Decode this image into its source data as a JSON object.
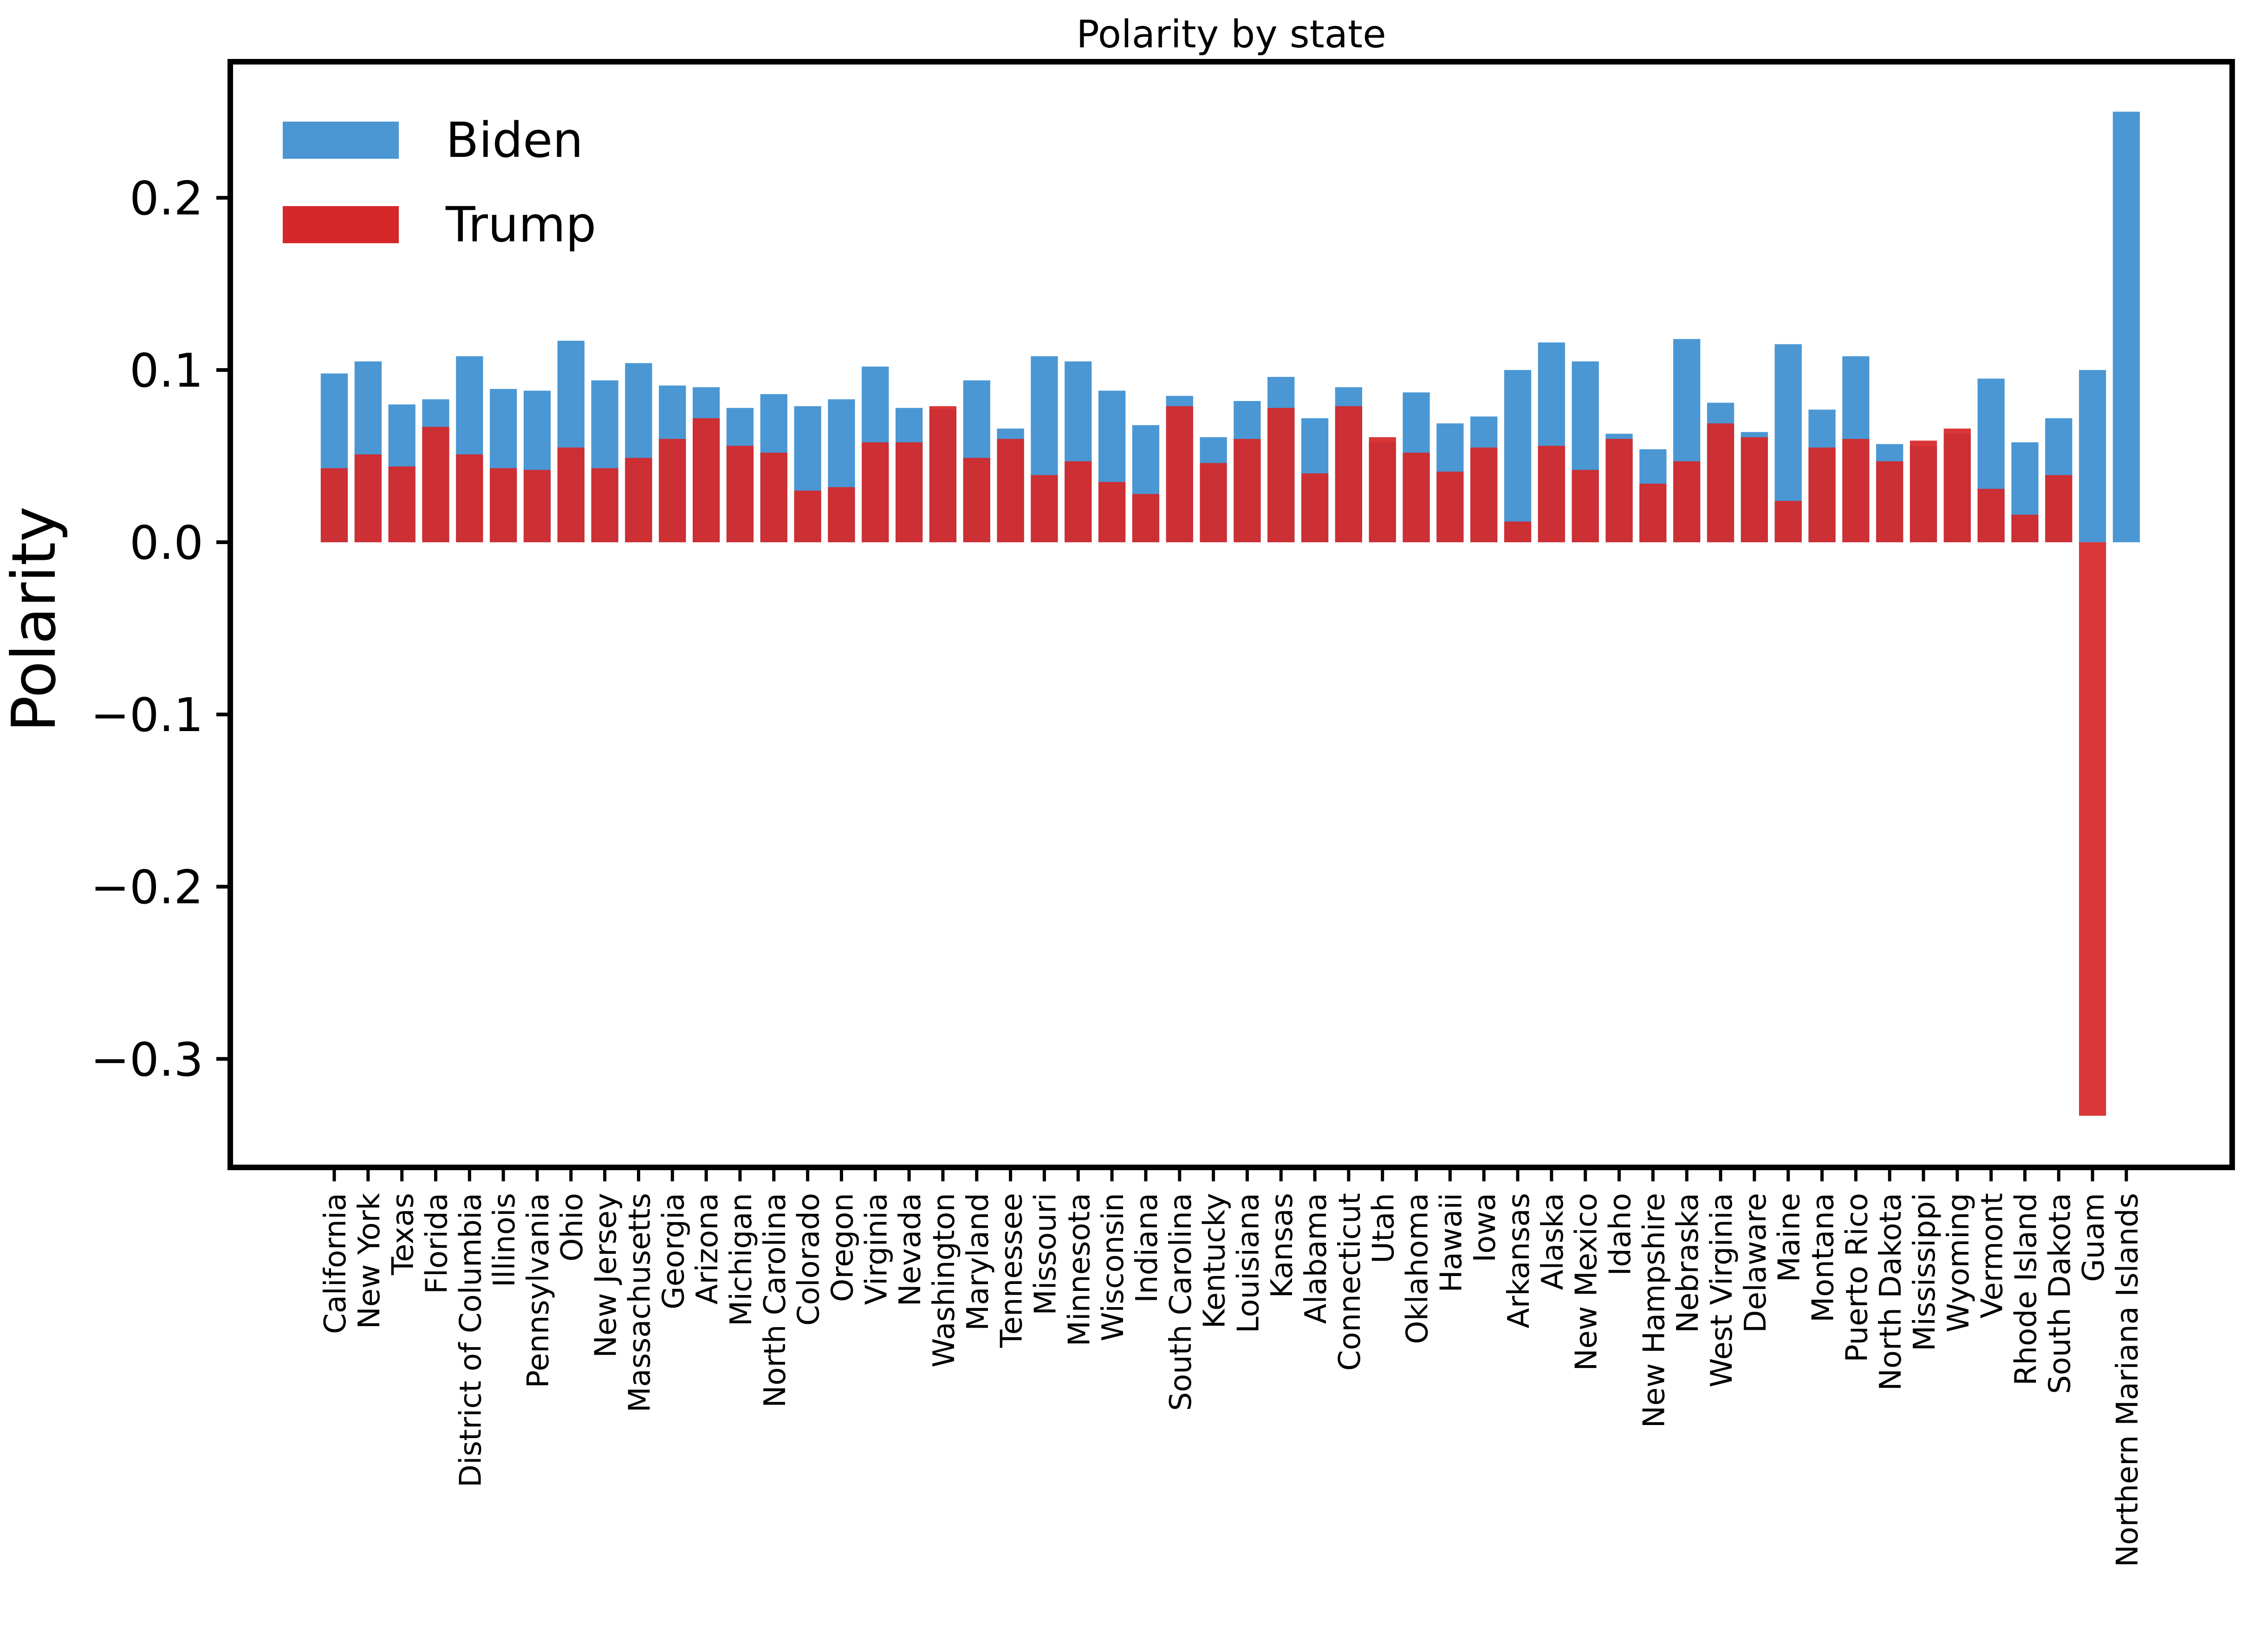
{
  "chart_data": {
    "type": "bar",
    "title": "Polarity by state",
    "xlabel": "",
    "ylabel": "Polarity",
    "ylim": [
      -0.363,
      0.279
    ],
    "yticks": [
      {
        "value": 0.2,
        "label": "0.2"
      },
      {
        "value": 0.1,
        "label": "0.1"
      },
      {
        "value": 0.0,
        "label": "0.0"
      },
      {
        "value": -0.1,
        "label": "−0.1"
      },
      {
        "value": -0.2,
        "label": "−0.2"
      },
      {
        "value": -0.3,
        "label": "−0.3"
      }
    ],
    "grid": false,
    "legend_position": "top-left",
    "categories": [
      "California",
      "New York",
      "Texas",
      "Florida",
      "District of Columbia",
      "Illinois",
      "Pennsylvania",
      "Ohio",
      "New Jersey",
      "Massachusetts",
      "Georgia",
      "Arizona",
      "Michigan",
      "North Carolina",
      "Colorado",
      "Oregon",
      "Virginia",
      "Nevada",
      "Washington",
      "Maryland",
      "Tennessee",
      "Missouri",
      "Minnesota",
      "Wisconsin",
      "Indiana",
      "South Carolina",
      "Kentucky",
      "Louisiana",
      "Kansas",
      "Alabama",
      "Connecticut",
      "Utah",
      "Oklahoma",
      "Hawaii",
      "Iowa",
      "Arkansas",
      "Alaska",
      "New Mexico",
      "Idaho",
      "New Hampshire",
      "Nebraska",
      "West Virginia",
      "Delaware",
      "Maine",
      "Montana",
      "Puerto Rico",
      "North Dakota",
      "Mississippi",
      "Wyoming",
      "Vermont",
      "Rhode Island",
      "South Dakota",
      "Guam",
      "Northern Mariana Islands"
    ],
    "series": [
      {
        "name": "Biden",
        "color": "#4a97d4",
        "values": [
          0.098,
          0.105,
          0.08,
          0.083,
          0.108,
          0.089,
          0.088,
          0.117,
          0.094,
          0.104,
          0.091,
          0.09,
          0.078,
          0.086,
          0.079,
          0.083,
          0.102,
          0.078,
          0.077,
          0.094,
          0.066,
          0.108,
          0.105,
          0.088,
          0.068,
          0.085,
          0.061,
          0.082,
          0.096,
          0.072,
          0.09,
          0.058,
          0.087,
          0.069,
          0.073,
          0.1,
          0.116,
          0.105,
          0.063,
          0.054,
          0.118,
          0.081,
          0.064,
          0.115,
          0.077,
          0.108,
          0.057,
          0.056,
          0.063,
          0.095,
          0.058,
          0.072,
          0.1,
          0.25
        ]
      },
      {
        "name": "Trump",
        "color": "#d62728",
        "values": [
          0.043,
          0.051,
          0.044,
          0.067,
          0.051,
          0.043,
          0.042,
          0.055,
          0.043,
          0.049,
          0.06,
          0.072,
          0.056,
          0.052,
          0.03,
          0.032,
          0.058,
          0.058,
          0.079,
          0.049,
          0.06,
          0.039,
          0.047,
          0.035,
          0.028,
          0.079,
          0.046,
          0.06,
          0.078,
          0.04,
          0.079,
          0.061,
          0.052,
          0.041,
          0.055,
          0.012,
          0.056,
          0.042,
          0.06,
          0.034,
          0.047,
          0.069,
          0.061,
          0.024,
          0.055,
          0.06,
          0.047,
          0.059,
          0.066,
          0.031,
          0.016,
          0.039,
          -0.333,
          null
        ]
      }
    ]
  }
}
